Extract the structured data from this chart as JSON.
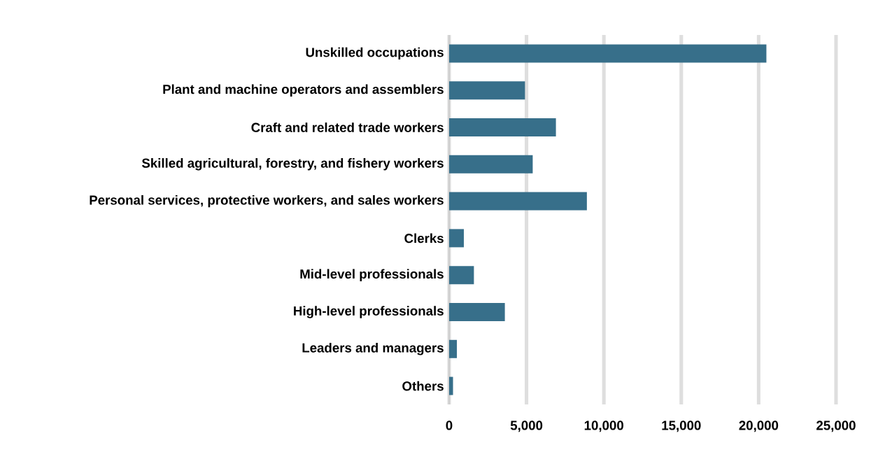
{
  "chart_data": {
    "type": "bar",
    "orientation": "horizontal",
    "categories": [
      "Unskilled occupations",
      "Plant and machine operators and assemblers",
      "Craft and related trade workers",
      "Skilled agricultural, forestry, and fishery workers",
      "Personal services, protective workers, and sales workers",
      "Clerks",
      "Mid-level professionals",
      "High-level professionals",
      "Leaders and managers",
      "Others"
    ],
    "values": [
      20500,
      4900,
      6900,
      5400,
      8900,
      950,
      1600,
      3600,
      500,
      250
    ],
    "color": "#376f8a",
    "xlim": [
      0,
      25000
    ],
    "xticks": [
      {
        "value": 0,
        "label": "0"
      },
      {
        "value": 5000,
        "label": "5,000"
      },
      {
        "value": 10000,
        "label": "10,000"
      },
      {
        "value": 15000,
        "label": "15,000"
      },
      {
        "value": 20000,
        "label": "20,000"
      },
      {
        "value": 25000,
        "label": "25,000"
      }
    ],
    "grid": "x"
  }
}
